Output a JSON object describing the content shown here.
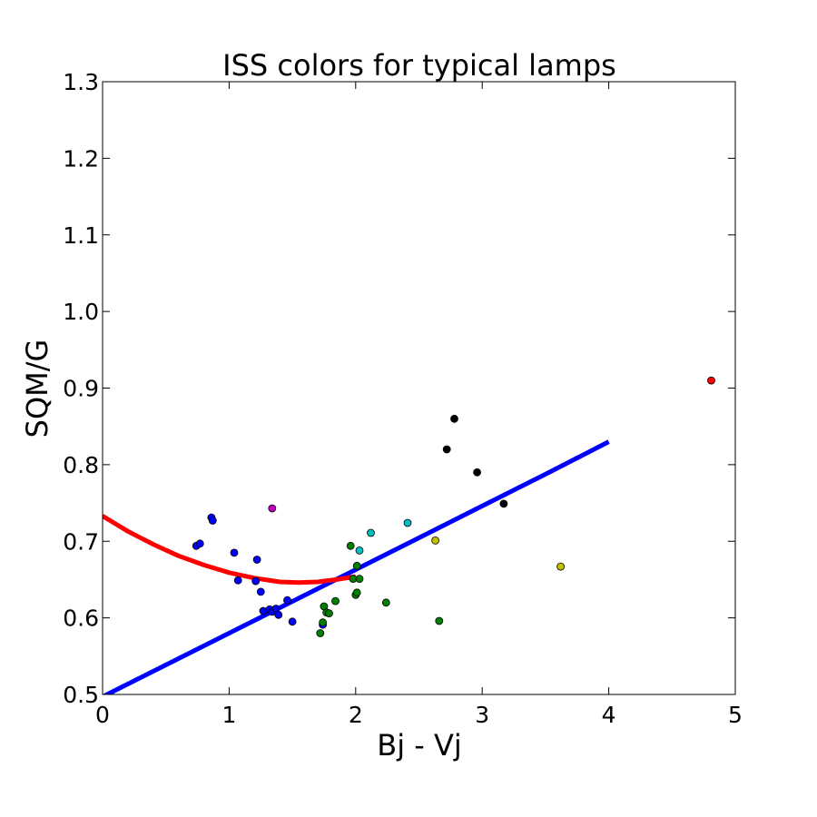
{
  "chart_data": {
    "type": "scatter",
    "title": "ISS colors for typical lamps",
    "xlabel": "Bj - Vj",
    "ylabel": "SQM/G",
    "xlim": [
      0,
      5
    ],
    "ylim": [
      0.5,
      1.3
    ],
    "x_ticks": [
      "0",
      "1",
      "2",
      "3",
      "4",
      "5"
    ],
    "y_ticks": [
      "0.5",
      "0.6",
      "0.7",
      "0.8",
      "0.9",
      "1.0",
      "1.1",
      "1.2",
      "1.3"
    ],
    "grid": false,
    "legend": "none",
    "points": [
      {
        "x": 0.74,
        "y": 0.694,
        "color": "#0000ff"
      },
      {
        "x": 0.77,
        "y": 0.697,
        "color": "#0000ff"
      },
      {
        "x": 0.86,
        "y": 0.731,
        "color": "#0000ff"
      },
      {
        "x": 0.87,
        "y": 0.727,
        "color": "#0000ff"
      },
      {
        "x": 1.04,
        "y": 0.685,
        "color": "#0000ff"
      },
      {
        "x": 1.07,
        "y": 0.649,
        "color": "#0000ff"
      },
      {
        "x": 1.21,
        "y": 0.648,
        "color": "#0000ff"
      },
      {
        "x": 1.22,
        "y": 0.676,
        "color": "#0000ff"
      },
      {
        "x": 1.25,
        "y": 0.634,
        "color": "#0000ff"
      },
      {
        "x": 1.27,
        "y": 0.609,
        "color": "#0000ff"
      },
      {
        "x": 1.32,
        "y": 0.611,
        "color": "#0000ff"
      },
      {
        "x": 1.34,
        "y": 0.608,
        "color": "#0000ff"
      },
      {
        "x": 1.37,
        "y": 0.612,
        "color": "#0000ff"
      },
      {
        "x": 1.39,
        "y": 0.604,
        "color": "#0000ff"
      },
      {
        "x": 1.46,
        "y": 0.623,
        "color": "#0000ff"
      },
      {
        "x": 1.5,
        "y": 0.595,
        "color": "#0000ff"
      },
      {
        "x": 1.74,
        "y": 0.591,
        "color": "#0000ff"
      },
      {
        "x": 1.34,
        "y": 0.743,
        "color": "#bf00bf"
      },
      {
        "x": 1.72,
        "y": 0.58,
        "color": "#008000"
      },
      {
        "x": 1.74,
        "y": 0.594,
        "color": "#008000"
      },
      {
        "x": 1.75,
        "y": 0.615,
        "color": "#008000"
      },
      {
        "x": 1.77,
        "y": 0.607,
        "color": "#008000"
      },
      {
        "x": 1.79,
        "y": 0.606,
        "color": "#008000"
      },
      {
        "x": 1.84,
        "y": 0.622,
        "color": "#008000"
      },
      {
        "x": 1.96,
        "y": 0.694,
        "color": "#008000"
      },
      {
        "x": 1.98,
        "y": 0.651,
        "color": "#008000"
      },
      {
        "x": 2.0,
        "y": 0.63,
        "color": "#008000"
      },
      {
        "x": 2.01,
        "y": 0.633,
        "color": "#008000"
      },
      {
        "x": 2.01,
        "y": 0.668,
        "color": "#008000"
      },
      {
        "x": 2.03,
        "y": 0.651,
        "color": "#008000"
      },
      {
        "x": 2.24,
        "y": 0.62,
        "color": "#008000"
      },
      {
        "x": 2.66,
        "y": 0.596,
        "color": "#008000"
      },
      {
        "x": 2.03,
        "y": 0.688,
        "color": "#00bfbf"
      },
      {
        "x": 2.12,
        "y": 0.711,
        "color": "#00bfbf"
      },
      {
        "x": 2.41,
        "y": 0.724,
        "color": "#00bfbf"
      },
      {
        "x": 2.63,
        "y": 0.701,
        "color": "#bfbf00"
      },
      {
        "x": 3.62,
        "y": 0.667,
        "color": "#bfbf00"
      },
      {
        "x": 2.72,
        "y": 0.82,
        "color": "#000000"
      },
      {
        "x": 2.78,
        "y": 0.86,
        "color": "#000000"
      },
      {
        "x": 2.96,
        "y": 0.79,
        "color": "#000000"
      },
      {
        "x": 3.17,
        "y": 0.749,
        "color": "#000000"
      },
      {
        "x": 4.81,
        "y": 0.91,
        "color": "#ff0000"
      }
    ],
    "lines": [
      {
        "color": "#0000ff",
        "x": [
          0.0,
          0.5,
          1.0,
          1.5,
          2.0,
          2.5,
          3.0,
          3.5,
          4.0
        ],
        "y": [
          0.497,
          0.5385,
          0.58,
          0.6215,
          0.663,
          0.7045,
          0.746,
          0.7875,
          0.83
        ]
      },
      {
        "color": "#ff0000",
        "x": [
          0.0,
          0.2,
          0.4,
          0.6,
          0.8,
          1.0,
          1.2,
          1.4,
          1.55,
          1.7,
          1.85,
          2.0
        ],
        "y": [
          0.733,
          0.713,
          0.696,
          0.681,
          0.669,
          0.659,
          0.652,
          0.647,
          0.646,
          0.647,
          0.65,
          0.654
        ]
      }
    ]
  }
}
